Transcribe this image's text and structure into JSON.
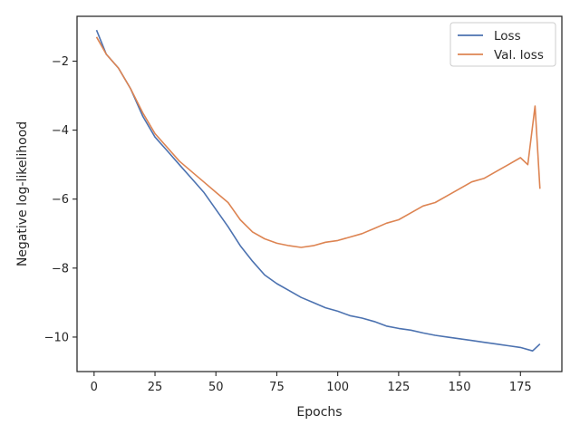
{
  "chart_data": {
    "type": "line",
    "xlabel": "Epochs",
    "ylabel": "Negative log-likelihood",
    "xlim": [
      -7,
      192
    ],
    "ylim": [
      -11.0,
      -0.7
    ],
    "xticks": [
      0,
      25,
      50,
      75,
      100,
      125,
      150,
      175
    ],
    "yticks": [
      -2,
      -4,
      -6,
      -8,
      -10
    ],
    "grid": false,
    "legend_position": "top-right",
    "series": [
      {
        "name": "Loss",
        "color": "#4c72b0",
        "x": [
          1,
          5,
          10,
          15,
          20,
          25,
          30,
          35,
          40,
          45,
          50,
          55,
          60,
          65,
          70,
          75,
          80,
          85,
          90,
          95,
          100,
          105,
          110,
          115,
          120,
          125,
          130,
          135,
          140,
          145,
          150,
          155,
          160,
          165,
          170,
          175,
          180,
          183
        ],
        "y": [
          -1.1,
          -1.8,
          -2.2,
          -2.8,
          -3.6,
          -4.2,
          -4.6,
          -5.0,
          -5.4,
          -5.8,
          -6.3,
          -6.8,
          -7.35,
          -7.8,
          -8.2,
          -8.45,
          -8.65,
          -8.85,
          -9.0,
          -9.15,
          -9.25,
          -9.38,
          -9.45,
          -9.55,
          -9.68,
          -9.75,
          -9.8,
          -9.88,
          -9.95,
          -10.0,
          -10.05,
          -10.1,
          -10.15,
          -10.2,
          -10.25,
          -10.3,
          -10.4,
          -10.2
        ]
      },
      {
        "name": "Val. loss",
        "color": "#dd8452",
        "x": [
          1,
          5,
          10,
          15,
          20,
          25,
          30,
          35,
          40,
          45,
          50,
          55,
          60,
          65,
          70,
          75,
          80,
          85,
          90,
          95,
          100,
          105,
          110,
          115,
          120,
          125,
          130,
          135,
          140,
          145,
          150,
          155,
          160,
          165,
          170,
          175,
          178,
          181,
          183
        ],
        "y": [
          -1.3,
          -1.8,
          -2.2,
          -2.8,
          -3.5,
          -4.1,
          -4.5,
          -4.9,
          -5.2,
          -5.5,
          -5.8,
          -6.1,
          -6.6,
          -6.95,
          -7.15,
          -7.28,
          -7.35,
          -7.4,
          -7.35,
          -7.25,
          -7.2,
          -7.1,
          -7.0,
          -6.85,
          -6.7,
          -6.6,
          -6.4,
          -6.2,
          -6.1,
          -5.9,
          -5.7,
          -5.5,
          -5.4,
          -5.2,
          -5.0,
          -4.8,
          -5.0,
          -3.3,
          -5.7
        ]
      }
    ]
  }
}
